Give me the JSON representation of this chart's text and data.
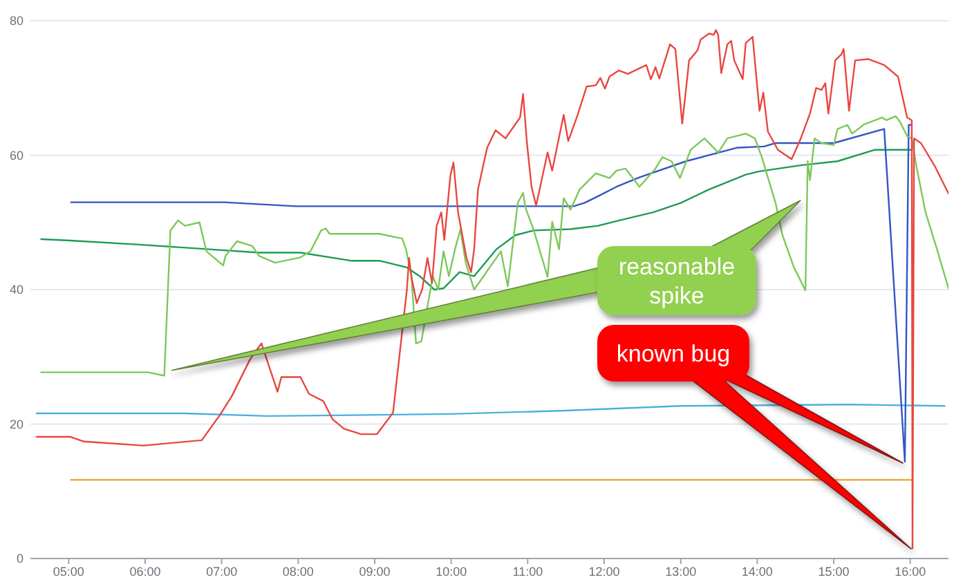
{
  "chart_data": {
    "type": "line",
    "xlim": [
      4.5,
      16.5
    ],
    "ylim": [
      0,
      80
    ],
    "xticks": [
      {
        "value": 5,
        "label": "05:00"
      },
      {
        "value": 6,
        "label": "06:00"
      },
      {
        "value": 7,
        "label": "07:00"
      },
      {
        "value": 8,
        "label": "08:00"
      },
      {
        "value": 9,
        "label": "09:00"
      },
      {
        "value": 10,
        "label": "10:00"
      },
      {
        "value": 11,
        "label": "11:00"
      },
      {
        "value": 12,
        "label": "12:00"
      },
      {
        "value": 13,
        "label": "13:00"
      },
      {
        "value": 14,
        "label": "14:00"
      },
      {
        "value": 15,
        "label": "15:00"
      },
      {
        "value": 16,
        "label": "16:00"
      }
    ],
    "yticks": [
      0,
      20,
      40,
      60,
      80
    ],
    "grid": "y",
    "marker": "none",
    "series": [
      {
        "color": "#f2a93b",
        "x": [
          5.03,
          16.02
        ],
        "values": [
          11.7,
          11.7
        ]
      },
      {
        "color": "#4bb0de",
        "x": [
          4.58,
          6.5,
          7.6,
          8.5,
          10.0,
          11.5,
          13.0,
          15.2,
          16.45
        ],
        "values": [
          21.6,
          21.6,
          21.2,
          21.3,
          21.5,
          22.0,
          22.7,
          22.9,
          22.7
        ]
      },
      {
        "color": "#1e9a55",
        "x": [
          4.64,
          5.02,
          5.92,
          6.83,
          7.49,
          8.03,
          8.69,
          9.06,
          9.42,
          9.6,
          9.78,
          9.9,
          10.11,
          10.3,
          10.59,
          10.84,
          11.08,
          11.56,
          11.92,
          12.16,
          12.64,
          13.0,
          13.37,
          13.85,
          14.03,
          14.57,
          15.05,
          15.54,
          16.02
        ],
        "values": [
          47.5,
          47.3,
          46.7,
          46.0,
          45.5,
          45.5,
          44.3,
          44.3,
          43.3,
          41.9,
          40.0,
          40.2,
          42.6,
          42.0,
          46.0,
          48.1,
          48.8,
          49.0,
          49.5,
          50.2,
          51.5,
          52.9,
          54.9,
          57.1,
          57.6,
          58.5,
          59.1,
          60.8,
          60.8
        ]
      },
      {
        "color": "#3355c4",
        "x": [
          5.03,
          7.03,
          7.97,
          11.6,
          11.74,
          11.92,
          12.16,
          12.46,
          13.07,
          13.73,
          14.09,
          14.24,
          15.0,
          15.66,
          15.93,
          15.98,
          16.01
        ],
        "values": [
          53.0,
          53.0,
          52.4,
          52.4,
          52.9,
          53.9,
          55.3,
          56.7,
          59.1,
          61.1,
          61.3,
          61.8,
          61.8,
          63.9,
          14.4,
          64.5,
          64.5
        ]
      },
      {
        "color": "#7cc85a",
        "x": [
          4.64,
          6.04,
          6.25,
          6.33,
          6.43,
          6.52,
          6.71,
          6.8,
          7.02,
          7.05,
          7.2,
          7.4,
          7.49,
          7.7,
          8.03,
          8.16,
          8.3,
          8.36,
          8.41,
          9.06,
          9.36,
          9.41,
          9.48,
          9.54,
          9.61,
          9.76,
          9.83,
          9.9,
          9.97,
          10.05,
          10.12,
          10.19,
          10.3,
          10.65,
          10.74,
          10.87,
          10.94,
          10.97,
          11.08,
          11.26,
          11.32,
          11.41,
          11.47,
          11.56,
          11.68,
          11.89,
          12.07,
          12.16,
          12.28,
          12.46,
          12.67,
          12.76,
          12.88,
          12.99,
          13.13,
          13.31,
          13.49,
          13.61,
          13.85,
          13.97,
          14.06,
          14.24,
          14.33,
          14.48,
          14.63,
          14.66,
          14.69,
          14.75,
          14.84,
          15.0,
          15.05,
          15.18,
          15.24,
          15.4,
          15.63,
          15.69,
          15.81,
          15.87,
          15.96,
          16.02,
          16.08,
          16.2,
          16.35,
          16.5
        ],
        "values": [
          27.7,
          27.7,
          27.2,
          48.8,
          50.3,
          49.5,
          50.0,
          45.7,
          43.6,
          45.0,
          47.2,
          46.5,
          45.0,
          44.0,
          44.8,
          45.7,
          48.8,
          49.1,
          48.3,
          48.3,
          47.6,
          46.0,
          42.0,
          32.0,
          32.3,
          42.0,
          40.0,
          45.7,
          42.0,
          46.0,
          49.0,
          44.0,
          40.0,
          45.7,
          40.5,
          52.9,
          54.4,
          52.2,
          48.8,
          41.9,
          50.1,
          46.0,
          53.6,
          51.9,
          54.9,
          57.3,
          56.6,
          57.7,
          58.0,
          55.3,
          58.0,
          59.7,
          59.1,
          56.6,
          60.8,
          62.5,
          60.4,
          62.5,
          63.2,
          62.5,
          59.7,
          52.9,
          48.1,
          43.3,
          39.9,
          59.1,
          56.3,
          62.5,
          61.8,
          61.5,
          63.9,
          64.5,
          63.2,
          64.6,
          65.6,
          65.2,
          65.8,
          64.9,
          62.8,
          62.5,
          58.4,
          51.5,
          46.0,
          40.2
        ]
      },
      {
        "color": "#e8473f",
        "x": [
          4.58,
          5.02,
          5.2,
          5.98,
          6.74,
          6.98,
          7.13,
          7.37,
          7.52,
          7.73,
          7.78,
          8.03,
          8.14,
          8.33,
          8.45,
          8.6,
          8.82,
          9.03,
          9.24,
          9.42,
          9.45,
          9.48,
          9.55,
          9.62,
          9.69,
          9.75,
          9.81,
          9.87,
          9.91,
          9.99,
          10.03,
          10.09,
          10.2,
          10.26,
          10.3,
          10.35,
          10.47,
          10.58,
          10.71,
          10.9,
          10.94,
          10.99,
          11.05,
          11.11,
          11.26,
          11.32,
          11.47,
          11.53,
          11.65,
          11.77,
          11.89,
          11.95,
          12.01,
          12.07,
          12.19,
          12.31,
          12.55,
          12.61,
          12.67,
          12.72,
          12.86,
          12.93,
          13.02,
          13.11,
          13.22,
          13.26,
          13.37,
          13.43,
          13.46,
          13.49,
          13.53,
          13.61,
          13.66,
          13.7,
          13.81,
          13.85,
          13.94,
          14.03,
          14.08,
          14.14,
          14.27,
          14.45,
          14.57,
          14.69,
          14.77,
          14.84,
          14.89,
          14.93,
          15.02,
          15.1,
          15.13,
          15.2,
          15.28,
          15.45,
          15.66,
          15.84,
          15.96,
          16.02,
          16.03,
          16.05,
          16.14,
          16.32,
          16.5
        ],
        "values": [
          18.1,
          18.1,
          17.4,
          16.8,
          17.6,
          21.4,
          24.1,
          29.6,
          32.0,
          24.8,
          27.0,
          27.0,
          24.5,
          23.4,
          20.7,
          19.3,
          18.5,
          18.5,
          21.7,
          39.9,
          44.7,
          41.9,
          38.0,
          40.0,
          44.7,
          41.0,
          49.5,
          51.5,
          47.4,
          57.0,
          58.9,
          51.5,
          44.7,
          42.6,
          46.0,
          54.9,
          61.1,
          63.7,
          62.5,
          65.6,
          69.1,
          61.8,
          55.3,
          52.5,
          60.4,
          57.7,
          66.0,
          62.1,
          65.9,
          70.2,
          70.4,
          71.5,
          69.9,
          71.7,
          72.6,
          72.1,
          73.4,
          71.3,
          73.1,
          71.4,
          76.5,
          75.8,
          64.7,
          74.1,
          75.6,
          77.2,
          78.1,
          77.9,
          78.6,
          77.9,
          72.2,
          76.5,
          77.0,
          74.1,
          71.3,
          76.7,
          77.6,
          66.6,
          69.3,
          63.5,
          60.8,
          59.4,
          62.5,
          66.2,
          70.0,
          69.7,
          70.7,
          66.2,
          74.1,
          75.0,
          75.8,
          66.6,
          74.1,
          74.3,
          73.4,
          71.7,
          65.6,
          65.2,
          1.5,
          62.5,
          61.8,
          58.4,
          54.3
        ]
      }
    ],
    "annotations": [
      {
        "text": "reasonable spike",
        "x": 6.35,
        "y": 28
      },
      "known bug"
    ]
  }
}
